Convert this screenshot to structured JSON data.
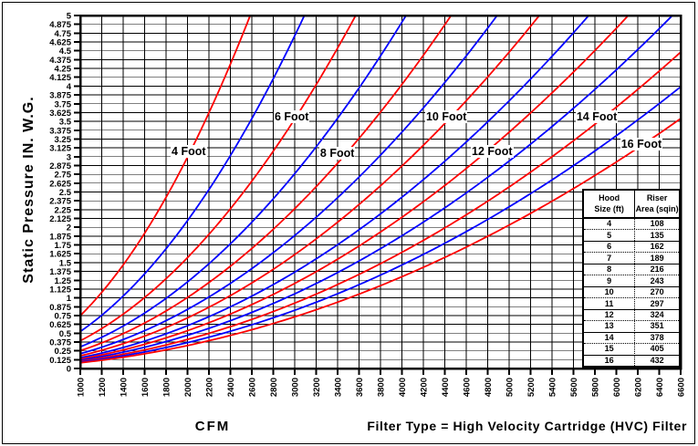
{
  "window": {
    "background": "#ffffff",
    "border_color": "#000000"
  },
  "footer": {
    "x_axis_label": "CFM",
    "filter_note": "Filter Type = High Velocity Cartridge (HVC) Filter"
  },
  "chart_data": {
    "type": "line",
    "title": "",
    "xlabel": "CFM",
    "ylabel": "Static Pressure IN. W.G.",
    "xlim": [
      1000,
      6600
    ],
    "ylim": [
      0,
      5
    ],
    "x_tick_step": 200,
    "y_tick_step": 0.125,
    "grid": true,
    "legend_position": "none",
    "x_ticks": [
      1000,
      1200,
      1400,
      1600,
      1800,
      2000,
      2200,
      2400,
      2600,
      2800,
      3000,
      3200,
      3400,
      3600,
      3800,
      4000,
      4200,
      4400,
      4600,
      4800,
      5000,
      5200,
      5400,
      5600,
      5800,
      6000,
      6200,
      6400,
      6600
    ],
    "y_ticks": [
      0,
      0.125,
      0.25,
      0.375,
      0.5,
      0.625,
      0.75,
      0.875,
      1,
      1.125,
      1.25,
      1.375,
      1.5,
      1.625,
      1.75,
      1.875,
      2,
      2.125,
      2.25,
      2.375,
      2.5,
      2.625,
      2.75,
      2.875,
      3,
      3.125,
      3.25,
      3.375,
      3.5,
      3.625,
      3.75,
      3.875,
      4,
      4.125,
      4.25,
      4.375,
      4.5,
      4.625,
      4.75,
      4.875,
      5
    ],
    "colors": {
      "even_hood_curve": "#ff0000",
      "odd_hood_curve": "#0000ff"
    },
    "series": [
      {
        "hood_size_ft": 4,
        "riser_area_sqin": 108,
        "color": "#ff0000",
        "k_cfm_per_sqrt_inwg": 1156,
        "points": [
          [
            1000,
            0.75
          ],
          [
            1400,
            1.47
          ],
          [
            1800,
            2.42
          ],
          [
            2200,
            3.62
          ],
          [
            2585,
            5.0
          ]
        ]
      },
      {
        "hood_size_ft": 5,
        "riser_area_sqin": 135,
        "color": "#0000ff",
        "k_cfm_per_sqrt_inwg": 1382,
        "points": [
          [
            1000,
            0.52
          ],
          [
            1500,
            1.18
          ],
          [
            2000,
            2.09
          ],
          [
            2500,
            3.27
          ],
          [
            3090,
            5.0
          ]
        ]
      },
      {
        "hood_size_ft": 6,
        "riser_area_sqin": 162,
        "color": "#ff0000",
        "k_cfm_per_sqrt_inwg": 1596,
        "points": [
          [
            1000,
            0.39
          ],
          [
            1500,
            0.88
          ],
          [
            2000,
            1.57
          ],
          [
            2500,
            2.45
          ],
          [
            3000,
            3.53
          ],
          [
            3569,
            5.0
          ]
        ]
      },
      {
        "hood_size_ft": 7,
        "riser_area_sqin": 189,
        "color": "#0000ff",
        "k_cfm_per_sqrt_inwg": 1806,
        "points": [
          [
            1000,
            0.31
          ],
          [
            1500,
            0.69
          ],
          [
            2000,
            1.23
          ],
          [
            2500,
            1.92
          ],
          [
            3000,
            2.76
          ],
          [
            3500,
            3.76
          ],
          [
            4039,
            5.0
          ]
        ]
      },
      {
        "hood_size_ft": 8,
        "riser_area_sqin": 216,
        "color": "#ff0000",
        "k_cfm_per_sqrt_inwg": 1994,
        "points": [
          [
            1000,
            0.25
          ],
          [
            1500,
            0.57
          ],
          [
            2000,
            1.01
          ],
          [
            2500,
            1.57
          ],
          [
            3000,
            2.26
          ],
          [
            3500,
            3.08
          ],
          [
            4000,
            4.02
          ],
          [
            4459,
            5.0
          ]
        ]
      },
      {
        "hood_size_ft": 9,
        "riser_area_sqin": 243,
        "color": "#0000ff",
        "k_cfm_per_sqrt_inwg": 2186,
        "points": [
          [
            1000,
            0.21
          ],
          [
            2000,
            0.84
          ],
          [
            3000,
            1.88
          ],
          [
            4000,
            3.35
          ],
          [
            4887,
            5.0
          ]
        ]
      },
      {
        "hood_size_ft": 10,
        "riser_area_sqin": 270,
        "color": "#ff0000",
        "k_cfm_per_sqrt_inwg": 2362,
        "points": [
          [
            1000,
            0.18
          ],
          [
            2000,
            0.72
          ],
          [
            3000,
            1.61
          ],
          [
            4000,
            2.87
          ],
          [
            5000,
            4.48
          ],
          [
            5281,
            5.0
          ]
        ]
      },
      {
        "hood_size_ft": 11,
        "riser_area_sqin": 297,
        "color": "#0000ff",
        "k_cfm_per_sqrt_inwg": 2568,
        "points": [
          [
            1000,
            0.15
          ],
          [
            2000,
            0.61
          ],
          [
            3000,
            1.36
          ],
          [
            4000,
            2.43
          ],
          [
            5000,
            3.79
          ],
          [
            5743,
            5.0
          ]
        ]
      },
      {
        "hood_size_ft": 12,
        "riser_area_sqin": 324,
        "color": "#ff0000",
        "k_cfm_per_sqrt_inwg": 2733,
        "points": [
          [
            1000,
            0.13
          ],
          [
            2000,
            0.54
          ],
          [
            3000,
            1.2
          ],
          [
            4000,
            2.14
          ],
          [
            5000,
            3.35
          ],
          [
            6111,
            5.0
          ]
        ]
      },
      {
        "hood_size_ft": 13,
        "riser_area_sqin": 351,
        "color": "#0000ff",
        "k_cfm_per_sqrt_inwg": 2917,
        "points": [
          [
            1000,
            0.12
          ],
          [
            2000,
            0.47
          ],
          [
            3000,
            1.06
          ],
          [
            4000,
            1.88
          ],
          [
            5000,
            2.94
          ],
          [
            6000,
            4.23
          ],
          [
            6522,
            5.0
          ]
        ]
      },
      {
        "hood_size_ft": 14,
        "riser_area_sqin": 378,
        "color": "#ff0000",
        "k_cfm_per_sqrt_inwg": 3118,
        "points": [
          [
            1000,
            0.1
          ],
          [
            2000,
            0.41
          ],
          [
            3000,
            0.93
          ],
          [
            4000,
            1.65
          ],
          [
            5000,
            2.57
          ],
          [
            6000,
            3.7
          ],
          [
            6600,
            4.48
          ]
        ]
      },
      {
        "hood_size_ft": 15,
        "riser_area_sqin": 405,
        "color": "#0000ff",
        "k_cfm_per_sqrt_inwg": 3304,
        "points": [
          [
            1000,
            0.09
          ],
          [
            2000,
            0.37
          ],
          [
            3000,
            0.82
          ],
          [
            4000,
            1.47
          ],
          [
            5000,
            2.29
          ],
          [
            6000,
            3.3
          ],
          [
            6600,
            3.99
          ]
        ]
      },
      {
        "hood_size_ft": 16,
        "riser_area_sqin": 432,
        "color": "#ff0000",
        "k_cfm_per_sqrt_inwg": 3508,
        "points": [
          [
            1000,
            0.08
          ],
          [
            2000,
            0.33
          ],
          [
            3000,
            0.73
          ],
          [
            4000,
            1.3
          ],
          [
            5000,
            2.03
          ],
          [
            6000,
            2.93
          ],
          [
            6600,
            3.54
          ]
        ]
      }
    ],
    "curve_labels": [
      {
        "text": "4 Foot",
        "cfm": 1843,
        "pressure": 3.07
      },
      {
        "text": "6 Foot",
        "cfm": 2804,
        "pressure": 3.57
      },
      {
        "text": "8 Foot",
        "cfm": 3229,
        "pressure": 3.05
      },
      {
        "text": "10 Foot",
        "cfm": 4217,
        "pressure": 3.57
      },
      {
        "text": "12 Foot",
        "cfm": 4643,
        "pressure": 3.07
      },
      {
        "text": "14 Foot",
        "cfm": 5620,
        "pressure": 3.57
      },
      {
        "text": "16 Foot",
        "cfm": 6036,
        "pressure": 3.18
      }
    ]
  },
  "table": {
    "headers": [
      {
        "line1": "Hood",
        "line2": "Size (ft)"
      },
      {
        "line1": "Riser",
        "line2": "Area (sqin)"
      }
    ],
    "rows": [
      [
        4,
        108
      ],
      [
        5,
        135
      ],
      [
        6,
        162
      ],
      [
        7,
        189
      ],
      [
        8,
        216
      ],
      [
        9,
        243
      ],
      [
        10,
        270
      ],
      [
        11,
        297
      ],
      [
        12,
        324
      ],
      [
        13,
        351
      ],
      [
        14,
        378
      ],
      [
        15,
        405
      ],
      [
        16,
        432
      ]
    ]
  }
}
